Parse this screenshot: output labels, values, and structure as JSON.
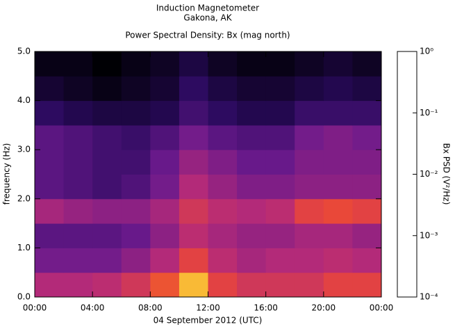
{
  "chart_data": {
    "type": "spectrogram",
    "title": "Induction Magnetometer",
    "subtitle": "Gakona, AK",
    "plot_title": "Power Spectral Density: Bx (mag north)",
    "x_label": "04 September 2012 (UTC)",
    "y_label": "frequency (Hz)",
    "colorbar_label": "Bx PSD (V²/Hz)",
    "xlim": [
      0,
      24
    ],
    "xticks": [
      {
        "value": 0,
        "label": "00:00"
      },
      {
        "value": 4,
        "label": "04:00"
      },
      {
        "value": 8,
        "label": "08:00"
      },
      {
        "value": 12,
        "label": "12:00"
      },
      {
        "value": 16,
        "label": "16:00"
      },
      {
        "value": 20,
        "label": "20:00"
      },
      {
        "value": 24,
        "label": "00:00"
      }
    ],
    "ylim": [
      0,
      5
    ],
    "yticks": [
      {
        "value": 0,
        "label": "0.0"
      },
      {
        "value": 1,
        "label": "1.0"
      },
      {
        "value": 2,
        "label": "2.0"
      },
      {
        "value": 3,
        "label": "3.0"
      },
      {
        "value": 4,
        "label": "4.0"
      },
      {
        "value": 5,
        "label": "5.0"
      }
    ],
    "zlim": [
      0.0001,
      1
    ],
    "zscale": "log",
    "zticks": [
      {
        "value": 1,
        "label": "10⁰"
      },
      {
        "value": 0.1,
        "label": "10⁻¹"
      },
      {
        "value": 0.01,
        "label": "10⁻²"
      },
      {
        "value": 0.001,
        "label": "10⁻³"
      },
      {
        "value": 0.0001,
        "label": "10⁻⁴"
      }
    ],
    "colormap": [
      "#000004",
      "#2a0a5e",
      "#6b1a8c",
      "#b52a78",
      "#e9463a",
      "#f98c18",
      "#f9d84a",
      "#fcfdbf"
    ],
    "x_edges": [
      0,
      2,
      4,
      6,
      8,
      10,
      12,
      14,
      16,
      18,
      20,
      22,
      24
    ],
    "y_edges": [
      0,
      0.5,
      1,
      1.5,
      2,
      2.5,
      3,
      3.5,
      4,
      4.5,
      5
    ],
    "values": [
      [
        0.005,
        0.005,
        0.006,
        0.01,
        0.025,
        0.16,
        0.016,
        0.01,
        0.01,
        0.01,
        0.016,
        0.016
      ],
      [
        0.0016,
        0.0016,
        0.0016,
        0.0025,
        0.005,
        0.016,
        0.006,
        0.004,
        0.005,
        0.005,
        0.006,
        0.005
      ],
      [
        0.001,
        0.001,
        0.001,
        0.0013,
        0.0025,
        0.006,
        0.004,
        0.003,
        0.003,
        0.004,
        0.004,
        0.003
      ],
      [
        0.004,
        0.003,
        0.0025,
        0.0025,
        0.004,
        0.01,
        0.006,
        0.005,
        0.006,
        0.016,
        0.02,
        0.016
      ],
      [
        0.001,
        0.0008,
        0.0006,
        0.0008,
        0.0016,
        0.005,
        0.003,
        0.002,
        0.002,
        0.0025,
        0.0025,
        0.0025
      ],
      [
        0.001,
        0.0008,
        0.0006,
        0.0006,
        0.0013,
        0.003,
        0.002,
        0.0013,
        0.0013,
        0.002,
        0.002,
        0.002
      ],
      [
        0.001,
        0.0008,
        0.0006,
        0.0005,
        0.0008,
        0.0016,
        0.001,
        0.0008,
        0.0008,
        0.0016,
        0.002,
        0.0016
      ],
      [
        0.0004,
        0.0003,
        0.00025,
        0.00025,
        0.0003,
        0.0006,
        0.0004,
        0.0003,
        0.0003,
        0.0005,
        0.0005,
        0.0005
      ],
      [
        0.0002,
        0.00016,
        0.00013,
        0.00016,
        0.0002,
        0.0004,
        0.00025,
        0.0002,
        0.0002,
        0.00025,
        0.0003,
        0.00025
      ],
      [
        0.00013,
        0.00013,
        0.0001,
        0.00013,
        0.00016,
        0.00025,
        0.00016,
        0.00013,
        0.00013,
        0.00016,
        0.0002,
        0.00016
      ]
    ]
  }
}
